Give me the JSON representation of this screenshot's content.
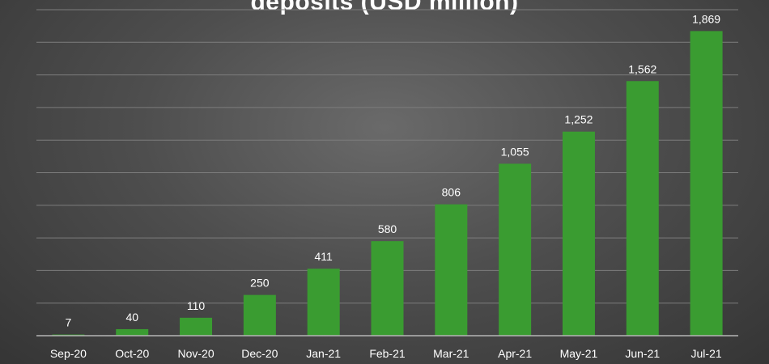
{
  "chart_data": {
    "type": "bar",
    "title": "deposits (USD million)",
    "categories": [
      "Sep-20",
      "Oct-20",
      "Nov-20",
      "Dec-20",
      "Jan-21",
      "Feb-21",
      "Mar-21",
      "Apr-21",
      "May-21",
      "Jun-21",
      "Jul-21"
    ],
    "values": [
      7,
      40,
      110,
      250,
      411,
      580,
      806,
      1055,
      1252,
      1562,
      1869
    ],
    "value_labels": [
      "7",
      "40",
      "110",
      "250",
      "411",
      "580",
      "806",
      "1,055",
      "1,252",
      "1,562",
      "1,869"
    ],
    "ylim": [
      0,
      2000
    ],
    "grid": true,
    "legend": "none",
    "colors": {
      "bar": "#3a9c31",
      "grid": "#7d7d7d",
      "text": "#ffffff",
      "axis": "#b5b5b5"
    }
  }
}
